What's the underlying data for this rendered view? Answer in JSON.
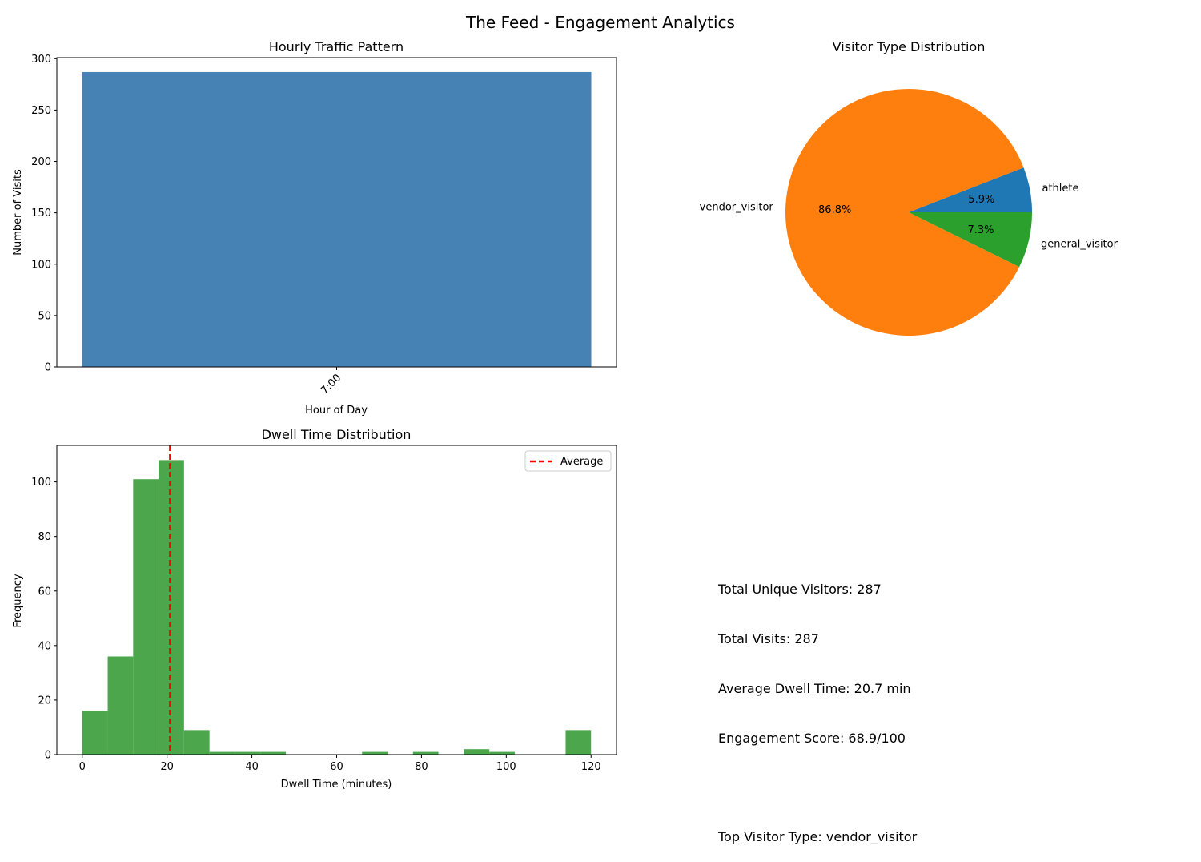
{
  "suptitle": "The Feed - Engagement Analytics",
  "chart_data": [
    {
      "type": "bar",
      "title": "Hourly Traffic Pattern",
      "xlabel": "Hour of Day",
      "ylabel": "Number of Visits",
      "categories": [
        "7:00"
      ],
      "values": [
        287
      ],
      "ylim": [
        0,
        301
      ],
      "yticks": [
        0,
        50,
        100,
        150,
        200,
        250,
        300
      ],
      "color": "#4682b4",
      "grid": false
    },
    {
      "type": "pie",
      "title": "Visitor Type Distribution",
      "labels": [
        "athlete",
        "vendor_visitor",
        "general_visitor"
      ],
      "values": [
        5.9,
        86.8,
        7.3
      ],
      "autopct": [
        "5.9%",
        "86.8%",
        "7.3%"
      ],
      "colors": [
        "#1f77b4",
        "#ff7f0e",
        "#2ca02c"
      ]
    },
    {
      "type": "histogram",
      "title": "Dwell Time Distribution",
      "xlabel": "Dwell Time (minutes)",
      "ylabel": "Frequency",
      "bin_edges": [
        0,
        6,
        12,
        18,
        24,
        30,
        36,
        42,
        48,
        54,
        60,
        66,
        72,
        78,
        84,
        90,
        96,
        102,
        108,
        114,
        120
      ],
      "counts": [
        16,
        36,
        101,
        108,
        9,
        1,
        1,
        1,
        0,
        0,
        0,
        1,
        0,
        1,
        0,
        2,
        1,
        0,
        0,
        9
      ],
      "xlim": [
        -6,
        126
      ],
      "ylim": [
        0,
        113.4
      ],
      "xticks": [
        0,
        20,
        40,
        60,
        80,
        100,
        120
      ],
      "yticks": [
        0,
        20,
        40,
        60,
        80,
        100
      ],
      "color": "#4ca64c",
      "average_line": {
        "value": 20.7,
        "color": "#ff0000",
        "label": "Average"
      },
      "legend": "top-right"
    }
  ],
  "stats": {
    "lines": [
      "Total Unique Visitors: 287",
      "Total Visits: 287",
      "Average Dwell Time: 20.7 min",
      "Engagement Score: 68.9/100",
      "",
      "Top Visitor Type: vendor_visitor"
    ]
  }
}
